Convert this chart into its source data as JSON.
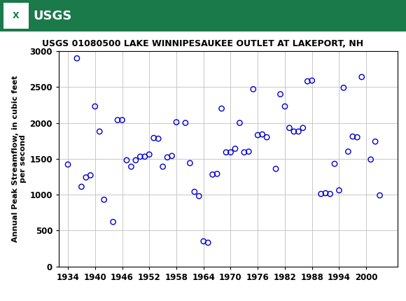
{
  "title": "USGS 01080500 LAKE WINNIPESAUKEE OUTLET AT LAKEPORT, NH",
  "ylabel": "Annual Peak Streamflow, in cubic feet\nper second",
  "xlabel": "",
  "xlim": [
    1932,
    2007
  ],
  "ylim": [
    0,
    3000
  ],
  "yticks": [
    0,
    500,
    1000,
    1500,
    2000,
    2500,
    3000
  ],
  "xticks": [
    1934,
    1940,
    1946,
    1952,
    1958,
    1964,
    1970,
    1976,
    1982,
    1988,
    1994,
    2000
  ],
  "marker_color": "#0000CC",
  "marker_size": 28,
  "data": [
    [
      1934,
      1420
    ],
    [
      1936,
      2900
    ],
    [
      1937,
      1110
    ],
    [
      1938,
      1240
    ],
    [
      1939,
      1270
    ],
    [
      1940,
      2230
    ],
    [
      1941,
      1880
    ],
    [
      1942,
      930
    ],
    [
      1944,
      620
    ],
    [
      1945,
      2040
    ],
    [
      1946,
      2040
    ],
    [
      1947,
      1480
    ],
    [
      1948,
      1390
    ],
    [
      1949,
      1480
    ],
    [
      1950,
      1530
    ],
    [
      1951,
      1530
    ],
    [
      1952,
      1560
    ],
    [
      1953,
      1790
    ],
    [
      1954,
      1780
    ],
    [
      1955,
      1390
    ],
    [
      1956,
      1520
    ],
    [
      1957,
      1540
    ],
    [
      1958,
      2010
    ],
    [
      1960,
      2000
    ],
    [
      1961,
      1440
    ],
    [
      1962,
      1040
    ],
    [
      1963,
      980
    ],
    [
      1964,
      350
    ],
    [
      1965,
      330
    ],
    [
      1966,
      1280
    ],
    [
      1967,
      1290
    ],
    [
      1968,
      2200
    ],
    [
      1969,
      1590
    ],
    [
      1970,
      1590
    ],
    [
      1971,
      1640
    ],
    [
      1972,
      2000
    ],
    [
      1973,
      1590
    ],
    [
      1974,
      1600
    ],
    [
      1975,
      2470
    ],
    [
      1976,
      1830
    ],
    [
      1977,
      1840
    ],
    [
      1978,
      1800
    ],
    [
      1980,
      1360
    ],
    [
      1981,
      2400
    ],
    [
      1982,
      2230
    ],
    [
      1983,
      1930
    ],
    [
      1984,
      1880
    ],
    [
      1985,
      1880
    ],
    [
      1986,
      1930
    ],
    [
      1987,
      2580
    ],
    [
      1988,
      2590
    ],
    [
      1990,
      1010
    ],
    [
      1991,
      1020
    ],
    [
      1992,
      1010
    ],
    [
      1993,
      1430
    ],
    [
      1994,
      1060
    ],
    [
      1995,
      2490
    ],
    [
      1996,
      1600
    ],
    [
      1997,
      1810
    ],
    [
      1998,
      1800
    ],
    [
      1999,
      2640
    ],
    [
      2001,
      1490
    ],
    [
      2002,
      1740
    ],
    [
      2003,
      990
    ]
  ],
  "header_color": "#1a7a4a",
  "background_color": "#ffffff",
  "grid_color": "#c8c8c8"
}
